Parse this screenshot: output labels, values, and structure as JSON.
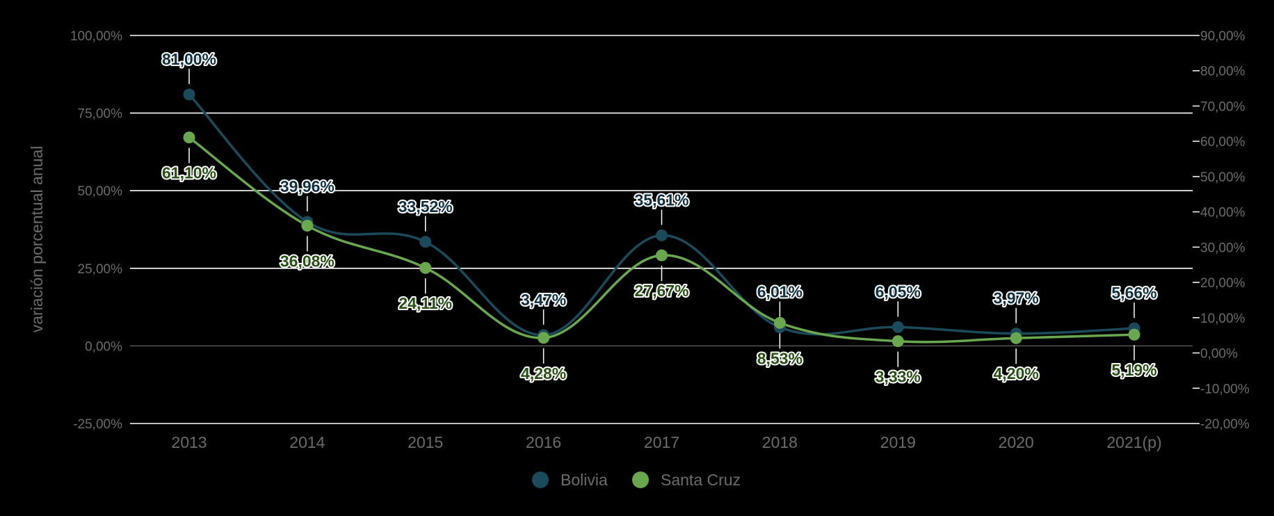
{
  "chart_data": {
    "type": "line",
    "categories": [
      "2013",
      "2014",
      "2015",
      "2016",
      "2017",
      "2018",
      "2019",
      "2020",
      "2021(p)"
    ],
    "ylabel": "variación porcentual anual",
    "ylim_left": [
      -25,
      100
    ],
    "ylim_right": [
      -20,
      90
    ],
    "yticks_left": [
      "-25,00%",
      "0,00%",
      "25,00%",
      "50,00%",
      "75,00%",
      "100,00%"
    ],
    "yticks_right": [
      "-20,00%",
      "-10,00%",
      "0,00%",
      "10,00%",
      "20,00%",
      "30,00%",
      "40,00%",
      "50,00%",
      "60,00%",
      "70,00%",
      "80,00%",
      "90,00%"
    ],
    "grid": true,
    "legend_position": "bottom-center",
    "series": [
      {
        "name": "Bolivia",
        "axis": "left",
        "color": "#1b4a5a",
        "values": [
          81.0,
          39.96,
          33.52,
          3.47,
          35.61,
          6.01,
          6.05,
          3.97,
          5.66
        ],
        "labels": [
          "81,00%",
          "39,96%",
          "33,52%",
          "3,47%",
          "35,61%",
          "6,01%",
          "6,05%",
          "3,97%",
          "5,66%"
        ],
        "label_position": "above"
      },
      {
        "name": "Santa Cruz",
        "axis": "right",
        "color": "#6aa84f",
        "values": [
          61.1,
          36.08,
          24.11,
          4.28,
          27.67,
          8.53,
          3.33,
          4.2,
          5.19
        ],
        "labels": [
          "61,10%",
          "36,08%",
          "24,11%",
          "4,28%",
          "27,67%",
          "8,53%",
          "3,33%",
          "4,20%",
          "5,19%"
        ],
        "label_position": "below"
      }
    ]
  }
}
